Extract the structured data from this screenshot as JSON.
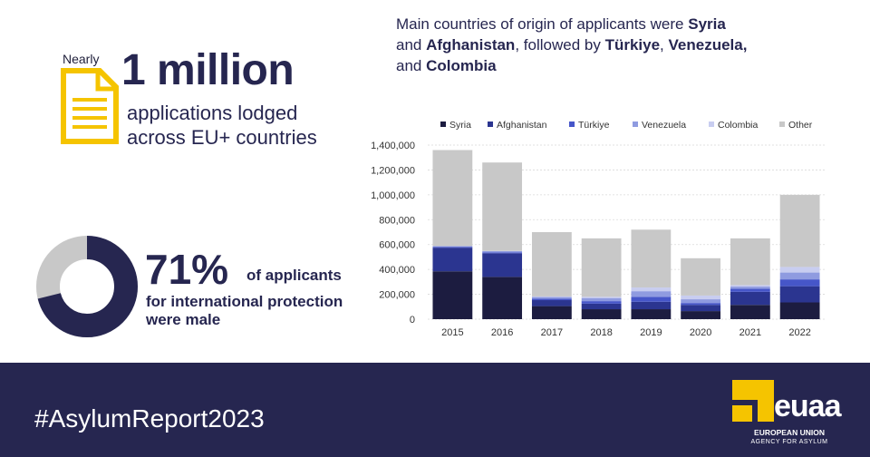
{
  "stat_applications": {
    "prefix": "Nearly",
    "headline": "1 million",
    "line1": "applications lodged",
    "line2": "across EU+ countries"
  },
  "stat_male": {
    "percent": "71%",
    "line1": "of applicants",
    "line2": "for international protection",
    "line3": "were male",
    "share": 0.71
  },
  "title_parts": {
    "t1": "Main countries of origin of applicants were ",
    "b1": "Syria",
    "t2": "and ",
    "b2": "Afghanistan",
    "t3": ", followed by ",
    "b3": "Türkiye",
    "t4": ", ",
    "b4": "Venezuela,",
    "t5": "and ",
    "b5": "Colombia"
  },
  "footer": {
    "hashtag": "#AsylumReport2023",
    "logo_word": "euaa",
    "logo_line1": "EUROPEAN UNION",
    "logo_line2": "AGENCY FOR ASYLUM"
  },
  "colors": {
    "navy": "#262650",
    "yellow": "#f5c400",
    "gray": "#c8c8c8"
  },
  "chart_data": {
    "type": "bar",
    "stacked": true,
    "categories": [
      "2015",
      "2016",
      "2017",
      "2018",
      "2019",
      "2020",
      "2021",
      "2022"
    ],
    "ylim": [
      0,
      1400000
    ],
    "yticks": [
      "0",
      "200,000",
      "400,000",
      "600,000",
      "800,000",
      "1,000,000",
      "1,200,000",
      "1,400,000"
    ],
    "legend_position": "top",
    "grid": true,
    "series": [
      {
        "name": "Syria",
        "color": "#1c1c40",
        "values": [
          385000,
          340000,
          105000,
          80000,
          80000,
          65000,
          115000,
          135000
        ]
      },
      {
        "name": "Afghanistan",
        "color": "#2b3590",
        "values": [
          190000,
          190000,
          48000,
          45000,
          60000,
          50000,
          105000,
          130000
        ]
      },
      {
        "name": "Türkiye",
        "color": "#4656c9",
        "values": [
          7000,
          7000,
          12000,
          20000,
          40000,
          15000,
          25000,
          55000
        ]
      },
      {
        "name": "Venezuela",
        "color": "#8f9be0",
        "values": [
          5000,
          10000,
          13000,
          25000,
          45000,
          30000,
          17000,
          55000
        ]
      },
      {
        "name": "Colombia",
        "color": "#c8cdf0",
        "values": [
          1000,
          2000,
          5000,
          10000,
          30000,
          30000,
          12000,
          45000
        ]
      },
      {
        "name": "Other",
        "color": "#c8c8c8",
        "values": [
          772000,
          711000,
          517000,
          470000,
          465000,
          300000,
          376000,
          580000
        ]
      }
    ]
  }
}
